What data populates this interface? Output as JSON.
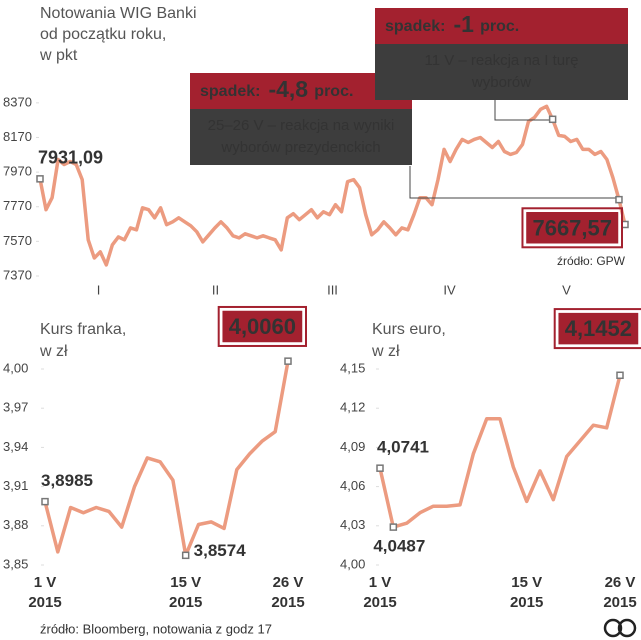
{
  "chart_data": [
    {
      "type": "line",
      "title": [
        "Notowania WIG Banki",
        "od początku roku,",
        "w pkt"
      ],
      "color": "#ec9b80",
      "values": [
        7931.09,
        7753,
        7822,
        8043,
        8014,
        8031,
        8014,
        7927,
        7579,
        7474,
        7509,
        7434,
        7550,
        7596,
        7579,
        7648,
        7637,
        7764,
        7753,
        7706,
        7764,
        7666,
        7683,
        7706,
        7683,
        7660,
        7625,
        7567,
        7608,
        7648,
        7683,
        7648,
        7602,
        7590,
        7614,
        7602,
        7590,
        7602,
        7590,
        7579,
        7521,
        7706,
        7730,
        7695,
        7724,
        7753,
        7706,
        7741,
        7724,
        7782,
        7741,
        7915,
        7927,
        7880,
        7724,
        7608,
        7637,
        7683,
        7648,
        7608,
        7648,
        7637,
        7724,
        7822,
        7822,
        7782,
        7927,
        8101,
        8031,
        8101,
        8159,
        8141,
        8159,
        8170,
        8141,
        8112,
        8147,
        8089,
        8072,
        8083,
        8130,
        8263,
        8286,
        8333,
        8350,
        8275,
        8182,
        8176,
        8147,
        8159,
        8101,
        8101,
        8072,
        8089,
        8043,
        7938,
        7811,
        7667.57
      ],
      "value_labels_at": {
        "first": "7931,09",
        "last": "7667,57"
      },
      "xtick_labels": [
        "I",
        "II",
        "III",
        "IV",
        "V"
      ],
      "ylim": [
        7370,
        8450
      ],
      "yticks": [
        7370,
        7570,
        7770,
        7970,
        8170,
        8370
      ],
      "source": "źródło: GPW",
      "annotations": [
        {
          "heading": "spadek:",
          "change": "-4,8",
          "unit": "proc.",
          "text": [
            "25–26 V – reakcja na wyniki",
            "wyborów prezydenckich"
          ]
        },
        {
          "heading": "spadek:",
          "change": "-1",
          "unit": "proc.",
          "text": [
            "11 V – reakcja na I turę",
            "wyborów"
          ]
        }
      ]
    },
    {
      "type": "line",
      "title": [
        "Kurs franka,",
        "w zł"
      ],
      "color": "#ec9b80",
      "values": [
        3.8985,
        3.86,
        3.894,
        3.89,
        3.894,
        3.891,
        3.879,
        3.91,
        3.932,
        3.929,
        3.915,
        3.8574,
        3.881,
        3.883,
        3.878,
        3.923,
        3.935,
        3.945,
        3.952,
        4.006
      ],
      "value_labels_at": {
        "first": "3,8985",
        "min": "3,8574",
        "last": "4,0060"
      },
      "categories": [
        "1 V",
        null,
        null,
        null,
        null,
        null,
        null,
        null,
        null,
        null,
        null,
        "15 V",
        null,
        null,
        null,
        null,
        null,
        null,
        null,
        "26 V"
      ],
      "category_year": "2015",
      "ylim": [
        3.85,
        4.0
      ],
      "yticks": [
        {
          "value": 3.85,
          "label": "3,85"
        },
        {
          "value": 3.88,
          "label": "3,88"
        },
        {
          "value": 3.91,
          "label": "3,91"
        },
        {
          "value": 3.94,
          "label": "3,94"
        },
        {
          "value": 3.97,
          "label": "3,97"
        },
        {
          "value": 4.0,
          "label": "4,00"
        }
      ]
    },
    {
      "type": "line",
      "title": [
        "Kurs euro,",
        "w zł"
      ],
      "color": "#ec9b80",
      "values": [
        4.0741,
        4.029,
        4.032,
        4.04,
        4.045,
        4.045,
        4.046,
        4.085,
        4.112,
        4.112,
        4.075,
        4.0487,
        4.072,
        4.05,
        4.083,
        4.095,
        4.107,
        4.105,
        4.1452
      ],
      "value_labels_at": {
        "first": "4,0741",
        "min": "4,0487",
        "last": "4,1452"
      },
      "categories": [
        "1 V",
        null,
        null,
        null,
        null,
        null,
        null,
        null,
        null,
        null,
        null,
        "15 V",
        null,
        null,
        null,
        null,
        null,
        null,
        "26 V"
      ],
      "category_year": "2015",
      "ylim": [
        4.0,
        4.15
      ],
      "yticks": [
        {
          "value": 4.0,
          "label": "4,00"
        },
        {
          "value": 4.03,
          "label": "4,03"
        },
        {
          "value": 4.06,
          "label": "4,06"
        },
        {
          "value": 4.09,
          "label": "4,09"
        },
        {
          "value": 4.12,
          "label": "4,12"
        },
        {
          "value": 4.15,
          "label": "4,15"
        }
      ]
    }
  ],
  "footer": {
    "source": "źródło: Bloomberg, notowania z godz 17"
  }
}
